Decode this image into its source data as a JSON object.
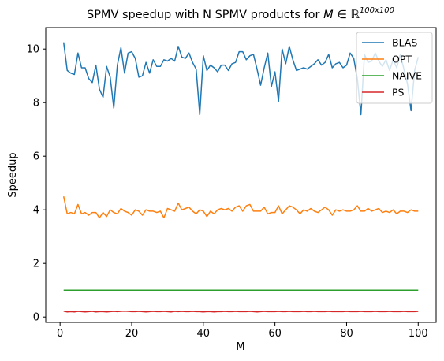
{
  "chart_data": {
    "type": "line",
    "title": "SPMV speedup with N SPMV products for ",
    "title_math": "M ∈ ℝ",
    "title_sup": "100x100",
    "xlabel": "M",
    "ylabel": "Speedup",
    "xlim": [
      -4,
      105
    ],
    "ylim": [
      -0.2,
      10.8
    ],
    "xticks": [
      0,
      20,
      40,
      60,
      80,
      100
    ],
    "yticks": [
      0,
      2,
      4,
      6,
      8,
      10
    ],
    "grid": false,
    "legend_position": "top-right",
    "x": [
      1,
      2,
      3,
      4,
      5,
      6,
      7,
      8,
      9,
      10,
      11,
      12,
      13,
      14,
      15,
      16,
      17,
      18,
      19,
      20,
      21,
      22,
      23,
      24,
      25,
      26,
      27,
      28,
      29,
      30,
      31,
      32,
      33,
      34,
      35,
      36,
      37,
      38,
      39,
      40,
      41,
      42,
      43,
      44,
      45,
      46,
      47,
      48,
      49,
      50,
      51,
      52,
      53,
      54,
      55,
      56,
      57,
      58,
      59,
      60,
      61,
      62,
      63,
      64,
      65,
      66,
      67,
      68,
      69,
      70,
      71,
      72,
      73,
      74,
      75,
      76,
      77,
      78,
      79,
      80,
      81,
      82,
      83,
      84,
      85,
      86,
      87,
      88,
      89,
      90,
      91,
      92,
      93,
      94,
      95,
      96,
      97,
      98,
      99,
      100
    ],
    "series": [
      {
        "name": "BLAS",
        "color": "#1f77b4",
        "values": [
          10.25,
          9.2,
          9.1,
          9.05,
          9.85,
          9.3,
          9.3,
          8.9,
          8.75,
          9.4,
          8.5,
          8.2,
          9.35,
          8.95,
          7.8,
          9.4,
          10.05,
          9.1,
          9.85,
          9.9,
          9.65,
          8.95,
          9.0,
          9.5,
          9.1,
          9.6,
          9.35,
          9.35,
          9.6,
          9.55,
          9.65,
          9.55,
          10.1,
          9.7,
          9.65,
          9.85,
          9.5,
          9.25,
          7.55,
          9.75,
          9.2,
          9.4,
          9.3,
          9.15,
          9.4,
          9.4,
          9.2,
          9.45,
          9.5,
          9.9,
          9.9,
          9.6,
          9.75,
          9.8,
          9.25,
          8.65,
          9.3,
          9.85,
          8.6,
          9.15,
          8.05,
          10.0,
          9.45,
          10.1,
          9.6,
          9.2,
          9.25,
          9.3,
          9.25,
          9.35,
          9.45,
          9.6,
          9.4,
          9.5,
          9.8,
          9.3,
          9.45,
          9.5,
          9.3,
          9.4,
          9.85,
          9.65,
          8.9,
          7.55,
          9.8,
          9.5,
          9.55,
          9.85,
          9.55,
          9.35,
          9.6,
          9.2,
          9.6,
          9.3,
          9.8,
          9.25,
          8.7,
          7.7,
          9.2,
          9.7
        ]
      },
      {
        "name": "OPT",
        "color": "#ff7f0e",
        "values": [
          4.5,
          3.85,
          3.9,
          3.85,
          4.2,
          3.85,
          3.9,
          3.8,
          3.9,
          3.9,
          3.7,
          3.9,
          3.75,
          4.0,
          3.9,
          3.85,
          4.05,
          3.95,
          3.9,
          3.8,
          4.0,
          3.95,
          3.8,
          4.0,
          3.95,
          3.95,
          3.9,
          3.95,
          3.7,
          4.05,
          4.0,
          3.95,
          4.25,
          4.0,
          4.05,
          4.1,
          3.95,
          3.85,
          4.0,
          3.95,
          3.75,
          3.95,
          3.85,
          4.0,
          4.05,
          4.0,
          4.05,
          3.95,
          4.1,
          4.15,
          3.95,
          4.15,
          4.2,
          3.95,
          3.95,
          3.95,
          4.1,
          3.85,
          3.9,
          3.9,
          4.15,
          3.85,
          4.0,
          4.15,
          4.1,
          4.0,
          3.85,
          4.0,
          3.95,
          4.05,
          3.95,
          3.9,
          4.0,
          4.1,
          4.0,
          3.8,
          4.0,
          3.95,
          4.0,
          3.95,
          3.95,
          4.0,
          4.15,
          3.95,
          3.95,
          4.05,
          3.95,
          4.0,
          4.05,
          3.9,
          3.95,
          3.9,
          4.0,
          3.85,
          3.95,
          3.95,
          3.9,
          4.0,
          3.95,
          3.95
        ]
      },
      {
        "name": "NAIVE",
        "color": "#2ca02c",
        "values": [
          1.0,
          1.0,
          1.0,
          1.0,
          1.0,
          1.0,
          1.0,
          1.0,
          1.0,
          1.0,
          1.0,
          1.0,
          1.0,
          1.0,
          1.0,
          1.0,
          1.0,
          1.0,
          1.0,
          1.0,
          1.0,
          1.0,
          1.0,
          1.0,
          1.0,
          1.0,
          1.0,
          1.0,
          1.0,
          1.0,
          1.0,
          1.0,
          1.0,
          1.0,
          1.0,
          1.0,
          1.0,
          1.0,
          1.0,
          1.0,
          1.0,
          1.0,
          1.0,
          1.0,
          1.0,
          1.0,
          1.0,
          1.0,
          1.0,
          1.0,
          1.0,
          1.0,
          1.0,
          1.0,
          1.0,
          1.0,
          1.0,
          1.0,
          1.0,
          1.0,
          1.0,
          1.0,
          1.0,
          1.0,
          1.0,
          1.0,
          1.0,
          1.0,
          1.0,
          1.0,
          1.0,
          1.0,
          1.0,
          1.0,
          1.0,
          1.0,
          1.0,
          1.0,
          1.0,
          1.0,
          1.0,
          1.0,
          1.0,
          1.0,
          1.0,
          1.0,
          1.0,
          1.0,
          1.0,
          1.0,
          1.0,
          1.0,
          1.0,
          1.0,
          1.0,
          1.0,
          1.0,
          1.0,
          1.0,
          1.0
        ]
      },
      {
        "name": "PS",
        "color": "#d62728",
        "values": [
          0.22,
          0.19,
          0.2,
          0.19,
          0.21,
          0.2,
          0.19,
          0.2,
          0.21,
          0.19,
          0.2,
          0.2,
          0.19,
          0.2,
          0.21,
          0.2,
          0.21,
          0.22,
          0.21,
          0.2,
          0.2,
          0.21,
          0.2,
          0.19,
          0.2,
          0.21,
          0.2,
          0.2,
          0.21,
          0.2,
          0.19,
          0.21,
          0.2,
          0.21,
          0.2,
          0.2,
          0.21,
          0.2,
          0.2,
          0.19,
          0.2,
          0.2,
          0.19,
          0.2,
          0.2,
          0.21,
          0.2,
          0.2,
          0.21,
          0.2,
          0.2,
          0.2,
          0.21,
          0.2,
          0.19,
          0.2,
          0.21,
          0.2,
          0.2,
          0.2,
          0.21,
          0.2,
          0.2,
          0.21,
          0.2,
          0.2,
          0.2,
          0.21,
          0.2,
          0.2,
          0.21,
          0.2,
          0.2,
          0.2,
          0.21,
          0.2,
          0.2,
          0.2,
          0.2,
          0.21,
          0.2,
          0.2,
          0.2,
          0.21,
          0.2,
          0.2,
          0.2,
          0.21,
          0.2,
          0.2,
          0.2,
          0.21,
          0.2,
          0.2,
          0.2,
          0.21,
          0.2,
          0.2,
          0.2,
          0.21
        ]
      }
    ]
  }
}
